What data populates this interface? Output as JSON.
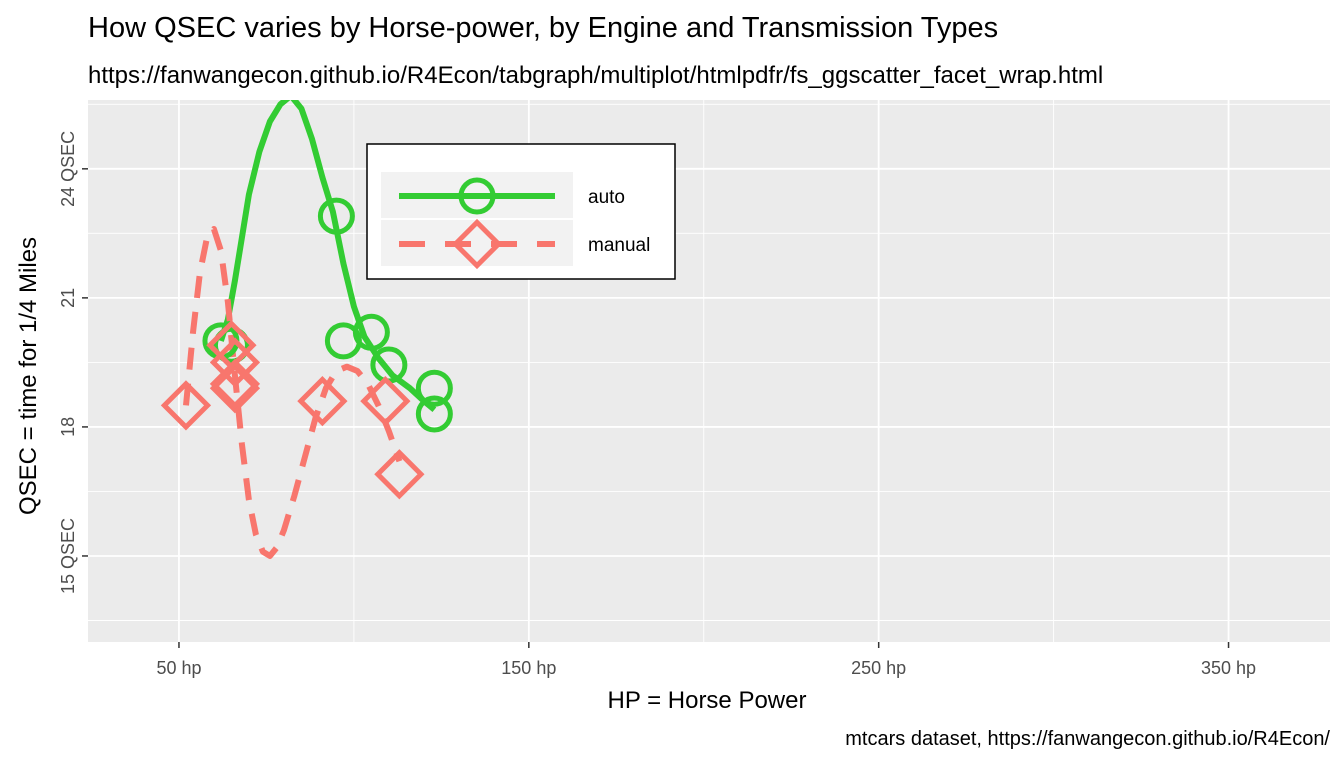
{
  "chart_data": {
    "type": "scatter",
    "title": "How QSEC varies by Horse-power, by Engine and Transmission Types",
    "subtitle": "https://fanwangecon.github.io/R4Econ/tabgraph/multiplot/htmlpdfr/fs_ggscatter_facet_wrap.html",
    "caption": "mtcars dataset, https://fanwangecon.github.io/R4Econ/",
    "xlabel": "HP = Horse Power",
    "ylabel": "QSEC = time for 1/4 Miles",
    "xlim": [
      24,
      379
    ],
    "ylim": [
      13.0,
      25.6
    ],
    "x_ticks": [
      50,
      150,
      250,
      350
    ],
    "x_tick_labels": [
      "50 hp",
      "150 hp",
      "250 hp",
      "350 hp"
    ],
    "y_ticks": [
      15,
      18,
      21,
      24
    ],
    "y_tick_labels": [
      "15 QSEC",
      "18",
      "21",
      "24 QSEC"
    ],
    "grid": true,
    "legend_position": "top-left",
    "series": [
      {
        "name": "auto",
        "color": "#33cc33",
        "marker": "circle",
        "line": "solid",
        "points": [
          [
            62,
            20.0
          ],
          [
            65,
            19.9
          ],
          [
            95,
            22.9
          ],
          [
            97,
            20.0
          ],
          [
            105,
            20.2
          ],
          [
            110,
            19.44
          ],
          [
            123,
            18.9
          ],
          [
            123,
            18.3
          ]
        ],
        "smooth": [
          [
            62,
            20.0
          ],
          [
            64,
            20.5
          ],
          [
            66,
            21.4
          ],
          [
            68,
            22.4
          ],
          [
            70,
            23.4
          ],
          [
            73,
            24.4
          ],
          [
            76,
            25.1
          ],
          [
            79,
            25.5
          ],
          [
            82,
            25.7
          ],
          [
            85,
            25.4
          ],
          [
            88,
            24.7
          ],
          [
            91,
            23.8
          ],
          [
            94,
            23.0
          ],
          [
            97,
            21.8
          ],
          [
            100,
            20.8
          ],
          [
            103,
            20.1
          ],
          [
            107,
            19.6
          ],
          [
            111,
            19.2
          ],
          [
            116,
            18.9
          ],
          [
            120,
            18.6
          ],
          [
            123,
            18.4
          ]
        ]
      },
      {
        "name": "manual",
        "color": "#f8766d",
        "marker": "diamond",
        "line": "dashed",
        "points": [
          [
            52,
            18.5
          ],
          [
            65,
            19.9
          ],
          [
            66,
            19.5
          ],
          [
            66,
            18.9
          ],
          [
            66,
            19.0
          ],
          [
            91,
            18.6
          ],
          [
            109,
            18.6
          ],
          [
            113,
            16.9
          ]
        ],
        "smooth": [
          [
            52,
            18.5
          ],
          [
            54,
            20.2
          ],
          [
            56,
            21.6
          ],
          [
            58,
            22.4
          ],
          [
            60,
            22.6
          ],
          [
            62,
            22.1
          ],
          [
            64,
            20.9
          ],
          [
            66,
            19.2
          ],
          [
            68,
            17.6
          ],
          [
            70,
            16.3
          ],
          [
            72,
            15.5
          ],
          [
            74,
            15.1
          ],
          [
            76,
            15.0
          ],
          [
            78,
            15.2
          ],
          [
            80,
            15.6
          ],
          [
            83,
            16.4
          ],
          [
            86,
            17.3
          ],
          [
            89,
            18.2
          ],
          [
            92,
            18.9
          ],
          [
            95,
            19.3
          ],
          [
            98,
            19.4
          ],
          [
            101,
            19.3
          ],
          [
            104,
            19.0
          ],
          [
            107,
            18.5
          ],
          [
            110,
            17.9
          ],
          [
            113,
            17.2
          ]
        ]
      }
    ]
  }
}
